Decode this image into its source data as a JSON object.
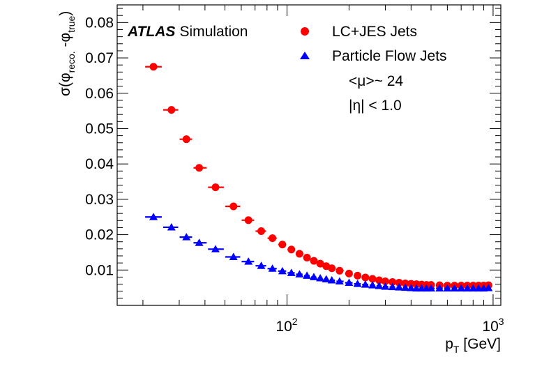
{
  "chart_data": {
    "type": "scatter",
    "title": "",
    "xlabel": "p",
    "xlabel_sub": "T",
    "xlabel_unit": " [GeV]",
    "ylabel_parts": {
      "sigma": "σ(φ",
      "reco_sub": "reco.",
      "minus": " -φ",
      "true_sub": "true",
      "close": ")"
    },
    "xscale": "log",
    "xlim": [
      15,
      1090
    ],
    "ylim": [
      0,
      0.085
    ],
    "grid": false,
    "legend_placement": "top-right",
    "x_tick_labels": [
      {
        "value": 100,
        "base": "10",
        "exp": "2"
      },
      {
        "value": 1000,
        "base": "10",
        "exp": "3"
      }
    ],
    "y_ticks": [
      0.01,
      0.02,
      0.03,
      0.04,
      0.05,
      0.06,
      0.07,
      0.08
    ],
    "y_tick_labels": [
      "0.01",
      "0.02",
      "0.03",
      "0.04",
      "0.05",
      "0.06",
      "0.07",
      "0.08"
    ],
    "annotations": {
      "experiment": "ATLAS",
      "status": "Simulation",
      "pileup": "<μ>~ 24",
      "eta": "|η| < 1.0"
    },
    "x": [
      22.5,
      27.5,
      32.5,
      37.5,
      45,
      55,
      65,
      75,
      85,
      95,
      105,
      115,
      125,
      135,
      145,
      155,
      165,
      180,
      200,
      220,
      240,
      260,
      280,
      300,
      325,
      350,
      375,
      400,
      425,
      450,
      475,
      500,
      550,
      600,
      650,
      700,
      750,
      800,
      850,
      900,
      950
    ],
    "series": [
      {
        "name": "LC+JES Jets",
        "color": "#ff0000",
        "marker": "circle",
        "values": [
          0.0675,
          0.0553,
          0.047,
          0.0389,
          0.0334,
          0.028,
          0.0241,
          0.021,
          0.019,
          0.0172,
          0.0158,
          0.0146,
          0.0135,
          0.0126,
          0.0118,
          0.0111,
          0.0105,
          0.0098,
          0.009,
          0.0084,
          0.0079,
          0.0075,
          0.0071,
          0.0068,
          0.0066,
          0.0064,
          0.0062,
          0.0061,
          0.006,
          0.0059,
          0.0058,
          0.0058,
          0.0057,
          0.0056,
          0.0056,
          0.0056,
          0.0056,
          0.0056,
          0.0056,
          0.0056,
          0.0057
        ]
      },
      {
        "name": "Particle Flow Jets",
        "color": "#0000ff",
        "marker": "triangle",
        "values": [
          0.025,
          0.0221,
          0.0193,
          0.0177,
          0.0159,
          0.0137,
          0.0124,
          0.0112,
          0.0104,
          0.0097,
          0.0092,
          0.0088,
          0.0084,
          0.008,
          0.0077,
          0.0074,
          0.0071,
          0.0068,
          0.0064,
          0.0061,
          0.0059,
          0.0057,
          0.0055,
          0.0053,
          0.0052,
          0.0051,
          0.005,
          0.0049,
          0.0048,
          0.0048,
          0.0048,
          0.0048,
          0.0048,
          0.0048,
          0.0048,
          0.0048,
          0.0048,
          0.0048,
          0.0048,
          0.0048,
          0.0049
        ]
      }
    ]
  }
}
